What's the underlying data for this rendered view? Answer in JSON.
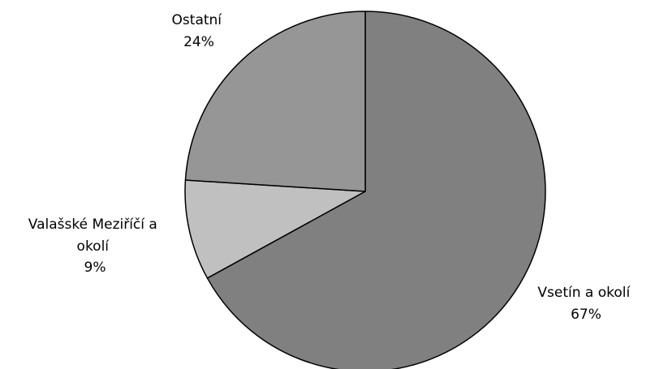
{
  "chart_data": {
    "type": "pie",
    "slices": [
      {
        "label_lines": [
          "Vsetín a okolí"
        ],
        "value_label": "67%",
        "value": 67,
        "color": "#808080"
      },
      {
        "label_lines": [
          "Valašské Meziříčí a",
          "okolí"
        ],
        "value_label": "9%",
        "value": 9,
        "color": "#c0c0c0"
      },
      {
        "label_lines": [
          "Ostatní"
        ],
        "value_label": "24%",
        "value": 24,
        "color": "#969696"
      }
    ],
    "start": "12 o'clock",
    "direction": "clockwise",
    "legend": "none",
    "outline_color": "#000000"
  }
}
